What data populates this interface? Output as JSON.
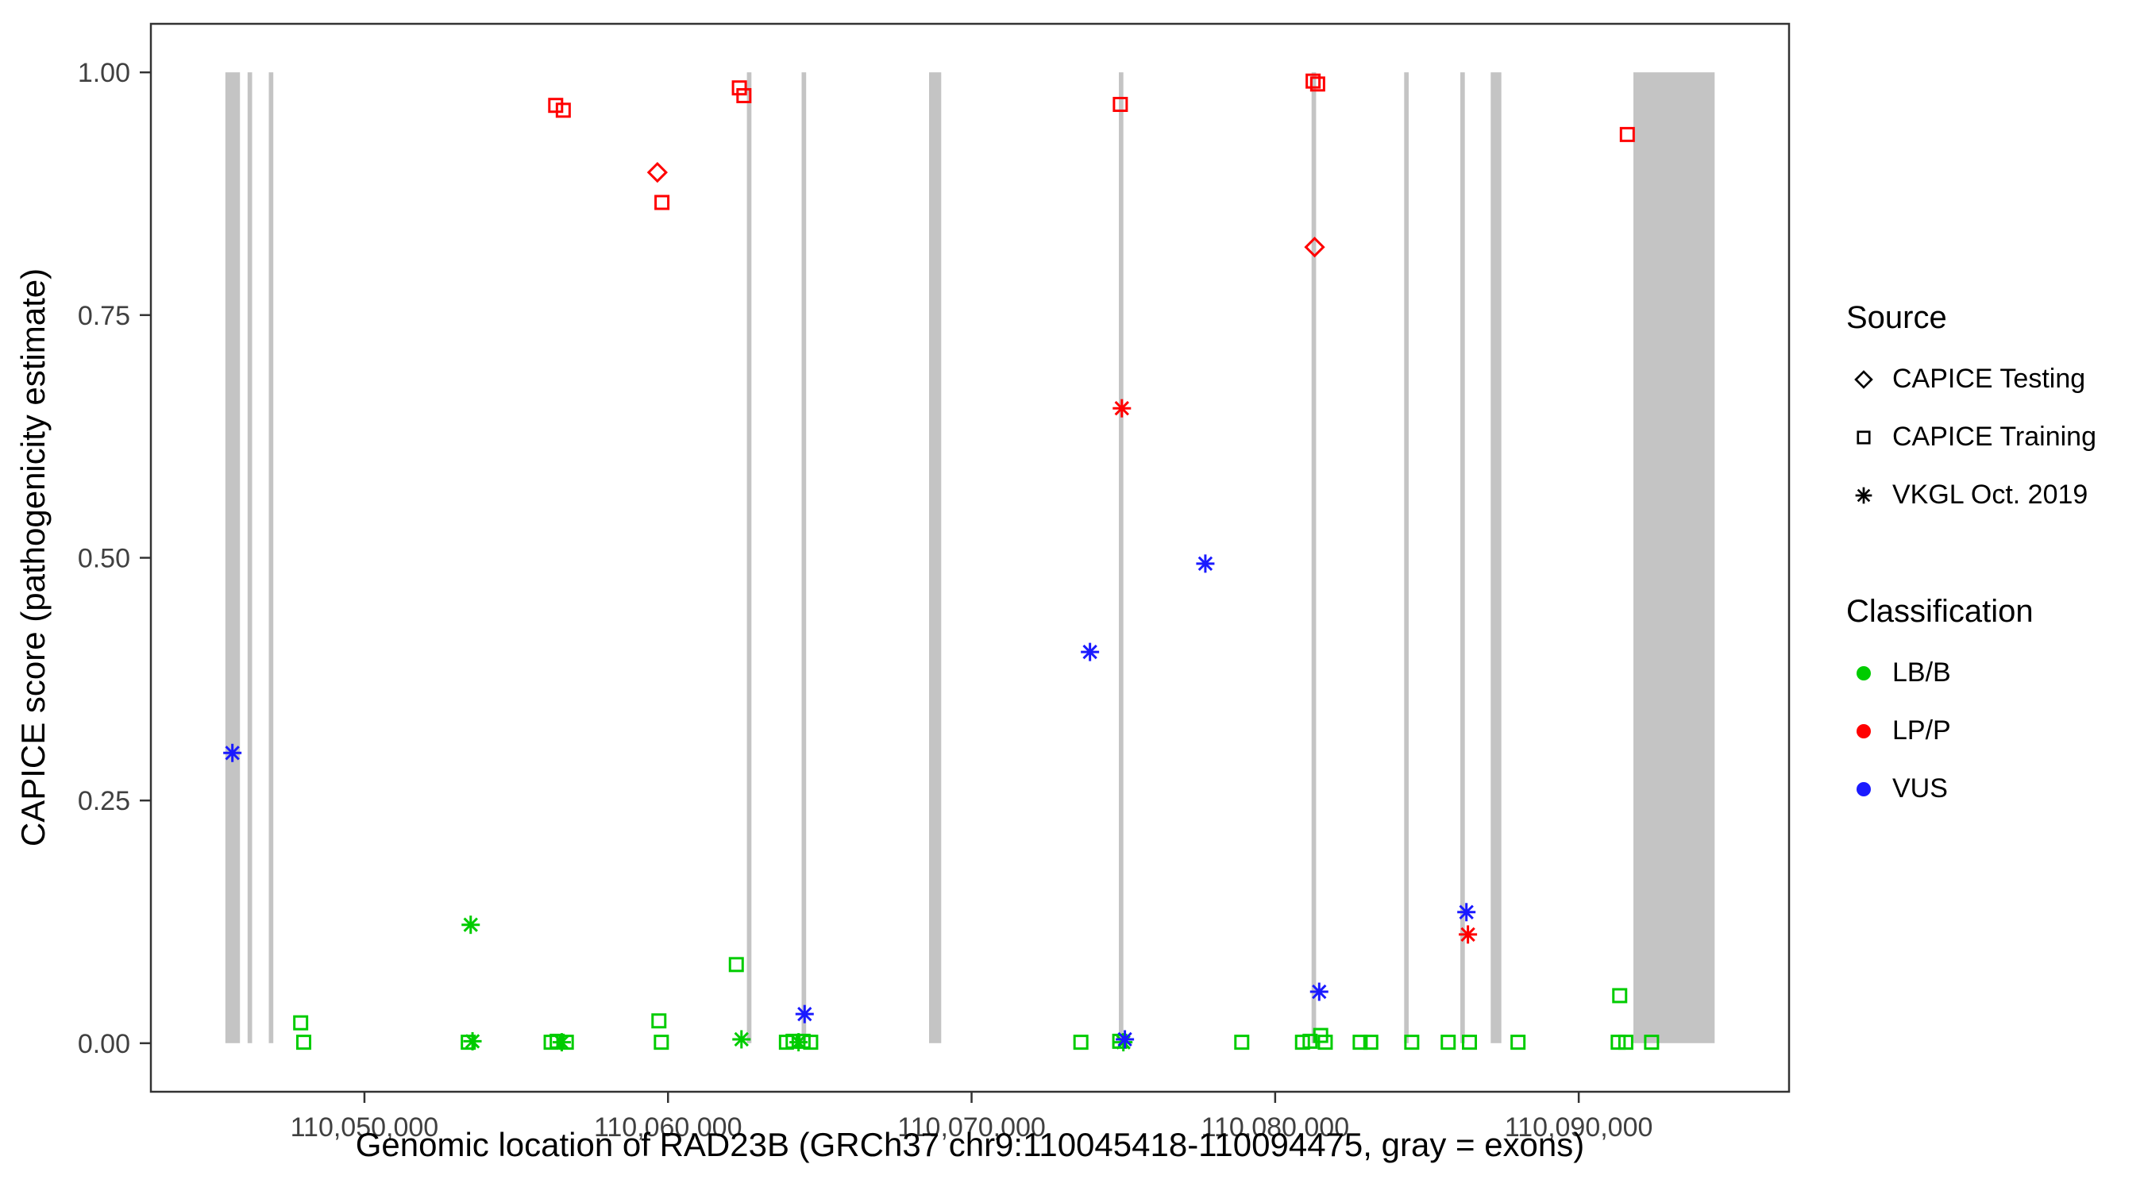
{
  "axes": {
    "note": ""
  },
  "legend": {
    "source": {
      "title": "Source",
      "items": [
        {
          "label": "CAPICE Testing",
          "marker": "diamond"
        },
        {
          "label": "CAPICE Training",
          "marker": "square"
        },
        {
          "label": "VKGL Oct. 2019",
          "marker": "asterisk"
        }
      ]
    },
    "classification": {
      "title": "Classification",
      "items": [
        {
          "label": "LB/B",
          "color": "#00CC00"
        },
        {
          "label": "LP/P",
          "color": "#FF0000"
        },
        {
          "label": "VUS",
          "color": "#1A1AFF"
        }
      ]
    }
  },
  "chart_data": {
    "type": "scatter",
    "title": "",
    "xlabel": "Genomic location of RAD23B (GRCh37 chr9:110045418-110094475, gray = exons)",
    "ylabel": "CAPICE score (pathogenicity estimate)",
    "legend_position": "right",
    "grid": false,
    "x_range": [
      110042965,
      110096928
    ],
    "y_range": [
      -0.05,
      1.05
    ],
    "x_ticks": [
      {
        "value": 110050000,
        "label": "110,050,000"
      },
      {
        "value": 110060000,
        "label": "110,060,000"
      },
      {
        "value": 110070000,
        "label": "110,070,000"
      },
      {
        "value": 110080000,
        "label": "110,080,000"
      },
      {
        "value": 110090000,
        "label": "110,090,000"
      }
    ],
    "y_ticks": [
      {
        "value": 0.0,
        "label": "0.00"
      },
      {
        "value": 0.25,
        "label": "0.25"
      },
      {
        "value": 0.5,
        "label": "0.50"
      },
      {
        "value": 0.75,
        "label": "0.75"
      },
      {
        "value": 1.0,
        "label": "1.00"
      }
    ],
    "exon_color": "#C4C4C4",
    "exons": [
      [
        110045418,
        110045900
      ],
      [
        110046150,
        110046300
      ],
      [
        110046850,
        110047000
      ],
      [
        110062600,
        110062750
      ],
      [
        110064400,
        110064550
      ],
      [
        110068600,
        110069000
      ],
      [
        110074850,
        110075000
      ],
      [
        110081200,
        110081350
      ],
      [
        110084250,
        110084400
      ],
      [
        110086100,
        110086250
      ],
      [
        110087100,
        110087450
      ],
      [
        110091800,
        110094475
      ]
    ],
    "classification_colors": {
      "LB/B": "#00CC00",
      "LP/P": "#FF0000",
      "VUS": "#1A1AFF"
    },
    "source_markers": {
      "CAPICE Testing": "diamond",
      "CAPICE Training": "square",
      "VKGL Oct. 2019": "asterisk"
    },
    "points": [
      {
        "loc": 110047900,
        "score": 0.021,
        "source": "CAPICE Training",
        "classification": "LB/B"
      },
      {
        "loc": 110048000,
        "score": 0.001,
        "source": "CAPICE Training",
        "classification": "LB/B"
      },
      {
        "loc": 110053500,
        "score": 0.122,
        "source": "VKGL Oct. 2019",
        "classification": "LB/B"
      },
      {
        "loc": 110053420,
        "score": 0.001,
        "source": "CAPICE Training",
        "classification": "LB/B"
      },
      {
        "loc": 110053560,
        "score": 0.002,
        "source": "VKGL Oct. 2019",
        "classification": "LB/B"
      },
      {
        "loc": 110056150,
        "score": 0.001,
        "source": "CAPICE Training",
        "classification": "LB/B"
      },
      {
        "loc": 110056350,
        "score": 0.002,
        "source": "CAPICE Training",
        "classification": "LB/B"
      },
      {
        "loc": 110056500,
        "score": 0.001,
        "source": "VKGL Oct. 2019",
        "classification": "LB/B"
      },
      {
        "loc": 110056650,
        "score": 0.001,
        "source": "CAPICE Training",
        "classification": "LB/B"
      },
      {
        "loc": 110059700,
        "score": 0.023,
        "source": "CAPICE Training",
        "classification": "LB/B"
      },
      {
        "loc": 110059780,
        "score": 0.001,
        "source": "CAPICE Training",
        "classification": "LB/B"
      },
      {
        "loc": 110062250,
        "score": 0.081,
        "source": "CAPICE Training",
        "classification": "LB/B"
      },
      {
        "loc": 110062420,
        "score": 0.004,
        "source": "VKGL Oct. 2019",
        "classification": "LB/B"
      },
      {
        "loc": 110063900,
        "score": 0.001,
        "source": "CAPICE Training",
        "classification": "LB/B"
      },
      {
        "loc": 110064120,
        "score": 0.002,
        "source": "CAPICE Training",
        "classification": "LB/B"
      },
      {
        "loc": 110064300,
        "score": 0.001,
        "source": "VKGL Oct. 2019",
        "classification": "LB/B"
      },
      {
        "loc": 110064450,
        "score": 0.002,
        "source": "CAPICE Training",
        "classification": "LB/B"
      },
      {
        "loc": 110064700,
        "score": 0.001,
        "source": "CAPICE Training",
        "classification": "LB/B"
      },
      {
        "loc": 110073600,
        "score": 0.001,
        "source": "CAPICE Training",
        "classification": "LB/B"
      },
      {
        "loc": 110074880,
        "score": 0.002,
        "source": "CAPICE Training",
        "classification": "LB/B"
      },
      {
        "loc": 110075000,
        "score": 0.001,
        "source": "VKGL Oct. 2019",
        "classification": "LB/B"
      },
      {
        "loc": 110078900,
        "score": 0.001,
        "source": "CAPICE Training",
        "classification": "LB/B"
      },
      {
        "loc": 110080900,
        "score": 0.001,
        "source": "CAPICE Training",
        "classification": "LB/B"
      },
      {
        "loc": 110081150,
        "score": 0.002,
        "source": "CAPICE Training",
        "classification": "LB/B"
      },
      {
        "loc": 110081500,
        "score": 0.008,
        "source": "CAPICE Training",
        "classification": "LB/B"
      },
      {
        "loc": 110081650,
        "score": 0.001,
        "source": "CAPICE Training",
        "classification": "LB/B"
      },
      {
        "loc": 110082800,
        "score": 0.001,
        "source": "CAPICE Training",
        "classification": "LB/B"
      },
      {
        "loc": 110083150,
        "score": 0.001,
        "source": "CAPICE Training",
        "classification": "LB/B"
      },
      {
        "loc": 110084500,
        "score": 0.001,
        "source": "CAPICE Training",
        "classification": "LB/B"
      },
      {
        "loc": 110085700,
        "score": 0.001,
        "source": "CAPICE Training",
        "classification": "LB/B"
      },
      {
        "loc": 110086400,
        "score": 0.001,
        "source": "CAPICE Training",
        "classification": "LB/B"
      },
      {
        "loc": 110088000,
        "score": 0.001,
        "source": "CAPICE Training",
        "classification": "LB/B"
      },
      {
        "loc": 110091350,
        "score": 0.049,
        "source": "CAPICE Training",
        "classification": "LB/B"
      },
      {
        "loc": 110091300,
        "score": 0.001,
        "source": "CAPICE Training",
        "classification": "LB/B"
      },
      {
        "loc": 110091550,
        "score": 0.001,
        "source": "CAPICE Training",
        "classification": "LB/B"
      },
      {
        "loc": 110092400,
        "score": 0.001,
        "source": "CAPICE Training",
        "classification": "LB/B"
      },
      {
        "loc": 110045650,
        "score": 0.299,
        "source": "VKGL Oct. 2019",
        "classification": "VUS"
      },
      {
        "loc": 110064500,
        "score": 0.03,
        "source": "VKGL Oct. 2019",
        "classification": "VUS"
      },
      {
        "loc": 110073900,
        "score": 0.403,
        "source": "VKGL Oct. 2019",
        "classification": "VUS"
      },
      {
        "loc": 110077700,
        "score": 0.494,
        "source": "VKGL Oct. 2019",
        "classification": "VUS"
      },
      {
        "loc": 110075050,
        "score": 0.004,
        "source": "VKGL Oct. 2019",
        "classification": "VUS"
      },
      {
        "loc": 110081450,
        "score": 0.053,
        "source": "VKGL Oct. 2019",
        "classification": "VUS"
      },
      {
        "loc": 110086300,
        "score": 0.135,
        "source": "VKGL Oct. 2019",
        "classification": "VUS"
      },
      {
        "loc": 110056300,
        "score": 0.966,
        "source": "CAPICE Training",
        "classification": "LP/P"
      },
      {
        "loc": 110056550,
        "score": 0.961,
        "source": "CAPICE Training",
        "classification": "LP/P"
      },
      {
        "loc": 110059650,
        "score": 0.897,
        "source": "CAPICE Testing",
        "classification": "LP/P"
      },
      {
        "loc": 110059800,
        "score": 0.866,
        "source": "CAPICE Training",
        "classification": "LP/P"
      },
      {
        "loc": 110062350,
        "score": 0.984,
        "source": "CAPICE Training",
        "classification": "LP/P"
      },
      {
        "loc": 110062500,
        "score": 0.976,
        "source": "CAPICE Training",
        "classification": "LP/P"
      },
      {
        "loc": 110074900,
        "score": 0.967,
        "source": "CAPICE Training",
        "classification": "LP/P"
      },
      {
        "loc": 110074950,
        "score": 0.654,
        "source": "VKGL Oct. 2019",
        "classification": "LP/P"
      },
      {
        "loc": 110081250,
        "score": 0.991,
        "source": "CAPICE Training",
        "classification": "LP/P"
      },
      {
        "loc": 110081400,
        "score": 0.988,
        "source": "CAPICE Training",
        "classification": "LP/P"
      },
      {
        "loc": 110081300,
        "score": 0.82,
        "source": "CAPICE Testing",
        "classification": "LP/P"
      },
      {
        "loc": 110086350,
        "score": 0.112,
        "source": "VKGL Oct. 2019",
        "classification": "LP/P"
      },
      {
        "loc": 110091600,
        "score": 0.936,
        "source": "CAPICE Training",
        "classification": "LP/P"
      }
    ]
  }
}
